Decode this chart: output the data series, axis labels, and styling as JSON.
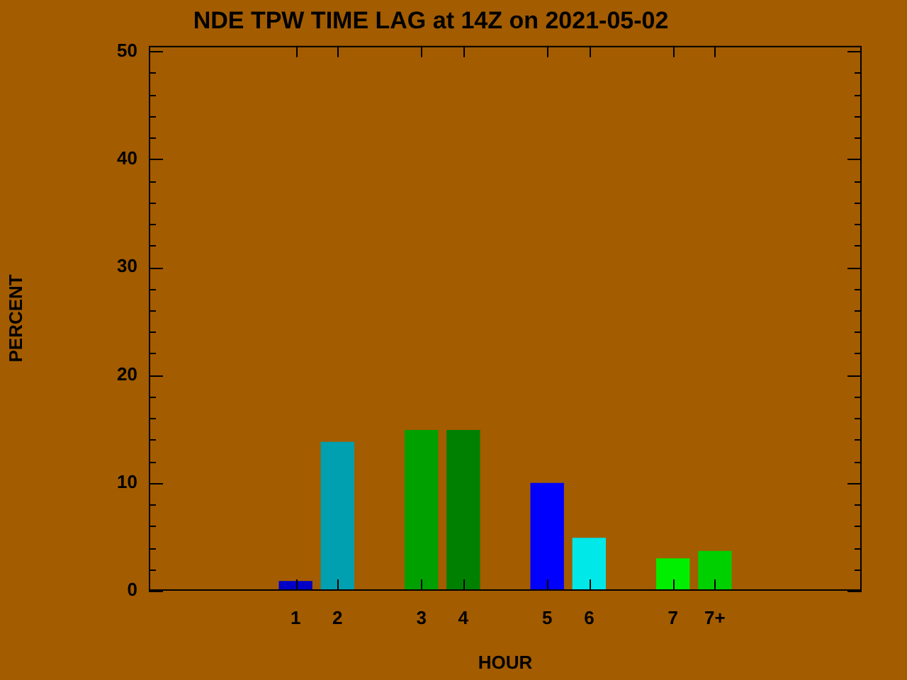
{
  "chart_data": {
    "type": "bar",
    "title": "NDE TPW TIME LAG at 14Z on 2021-05-02",
    "xlabel": "HOUR",
    "ylabel": "PERCENT",
    "categories": [
      null,
      null,
      null,
      "1",
      "2",
      null,
      "3",
      "4",
      null,
      "5",
      "6",
      null,
      "7",
      "7+",
      null,
      null,
      null
    ],
    "values": [
      null,
      null,
      null,
      0.9,
      13.8,
      null,
      14.9,
      14.9,
      null,
      10,
      4.9,
      null,
      3,
      3.7,
      null,
      null,
      null
    ],
    "colors": [
      "#000000",
      "#000000",
      "#000000",
      "#0000c8",
      "#00a0b0",
      "#000000",
      "#00a000",
      "#008000",
      "#000000",
      "#0000ff",
      "#00e8e8",
      "#000000",
      "#00ee00",
      "#00d000",
      "#000000",
      "#000000",
      "#000000"
    ],
    "ylim": [
      0,
      50.5
    ],
    "yticks": [
      0,
      {
        "value": 2,
        "label": null
      },
      {
        "value": 4,
        "label": null
      },
      {
        "value": 6,
        "label": null
      },
      {
        "value": 8,
        "label": null
      },
      10,
      {
        "value": 12,
        "label": null
      },
      {
        "value": 14,
        "label": null
      },
      {
        "value": 16,
        "label": null
      },
      {
        "value": 18,
        "label": null
      },
      20,
      {
        "value": 22,
        "label": null
      },
      {
        "value": 24,
        "label": null
      },
      {
        "value": 26,
        "label": null
      },
      {
        "value": 28,
        "label": null
      },
      30,
      {
        "value": 32,
        "label": null
      },
      {
        "value": 34,
        "label": null
      },
      {
        "value": 36,
        "label": null
      },
      {
        "value": 38,
        "label": null
      },
      40,
      {
        "value": 42,
        "label": null
      },
      {
        "value": 44,
        "label": null
      },
      {
        "value": 46,
        "label": null
      },
      {
        "value": 48,
        "label": null
      },
      50
    ],
    "grid": false,
    "legend": false
  }
}
